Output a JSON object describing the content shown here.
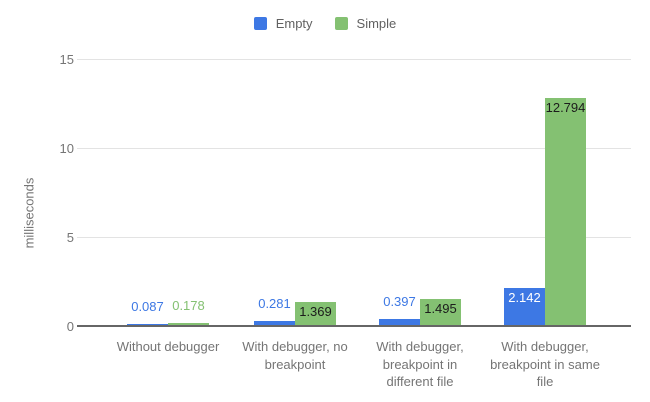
{
  "chart_data": {
    "type": "bar",
    "title": "",
    "xlabel": "",
    "ylabel": "milliseconds",
    "ylim": [
      0,
      15
    ],
    "yticks": [
      0,
      5,
      10,
      15
    ],
    "grid": true,
    "legend_position": "top",
    "background": "#ffffff",
    "categories": [
      "Without debugger",
      "With debugger, no breakpoint",
      "With debugger, breakpoint in different file",
      "With debugger, breakpoint in same file"
    ],
    "category_lines": [
      [
        "Without debugger"
      ],
      [
        "With debugger, no",
        "breakpoint"
      ],
      [
        "With debugger,",
        "breakpoint in",
        "different file"
      ],
      [
        "With debugger,",
        "breakpoint in same",
        "file"
      ]
    ],
    "series": [
      {
        "name": "Empty",
        "color": "#3d78e4",
        "inside_label_color": "#ffffff",
        "values": [
          0.087,
          0.281,
          0.397,
          2.142
        ],
        "value_labels": [
          "0.087",
          "0.281",
          "0.397",
          "2.142"
        ]
      },
      {
        "name": "Simple",
        "color": "#84c172",
        "inside_label_color": "#1c1c1c",
        "values": [
          0.178,
          1.369,
          1.495,
          12.794
        ],
        "value_labels": [
          "0.178",
          "1.369",
          "1.495",
          "12.794"
        ]
      }
    ]
  },
  "colors": {
    "gridline": "#e3e3e3",
    "axis_line": "#666666",
    "tick_text": "#757575",
    "category_text": "#757575",
    "legend_text": "#616161"
  }
}
